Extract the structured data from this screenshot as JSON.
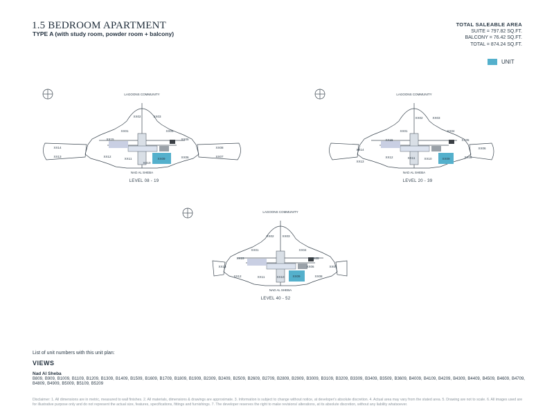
{
  "header": {
    "title": "1.5 BEDROOM APARTMENT",
    "subtitle": "TYPE A (with study room, powder room + balcony)"
  },
  "area": {
    "title": "TOTAL SALEABLE AREA",
    "suite": "SUITE = 797.82 SQ.FT.",
    "balcony": "BALCONY = 76.42 SQ.FT.",
    "total": "TOTAL = 874.24 SQ.FT."
  },
  "legend": {
    "label": "UNIT",
    "color": "#54b0cc"
  },
  "plans": {
    "top_label": "LAGOONS COMMUNITY",
    "bottom_label": "NAD AL SHEBA",
    "p1_level": "LEVEL 08 - 19",
    "p2_level": "LEVEL 20 - 39",
    "p3_level": "LEVEL 40 - 52",
    "units": [
      "XX01",
      "XX02",
      "XX03",
      "XX04",
      "XX05",
      "XX06",
      "XX07",
      "XX08",
      "XX09",
      "XX10",
      "XX11",
      "XX12",
      "XX13",
      "XX14",
      "XX15",
      "XX16"
    ]
  },
  "views": {
    "caption": "List of unit numbers with this unit plan:",
    "title": "VIEWS",
    "area_name": "Nad Al Sheba",
    "units": "B809, B909, B1009, B1109, B1209, B1309, B1409, B1509, B1609, B1709, B1809, B1909, B2309, B2409, B2509, B2609, B2709, B2809, B2909, B3009, B3109, B3209, B3309, B3409, B3509, B3609, B4009, B4109, B4209, B4309, B4409, B4509, B4609, B4709, B4809, B4909, B5009, B5109, B5209"
  },
  "disclaimer": "Disclaimer: 1. All dimensions are in metric, measured to wall finishes. 2. All materials, dimensions & drawings are approximate. 3. Information is subject to change without notice, at developer's absolute discretion. 4. Actual area may vary from the stated area. 5. Drawing are not to scale. 6. All images used are for illustrative purpose only and do not represent the actual size, features, specifications, fittings and furnishings. 7. The developer reserves the right to make revisions/ alterations, at its absolute discretion, without any liability whatsoever."
}
